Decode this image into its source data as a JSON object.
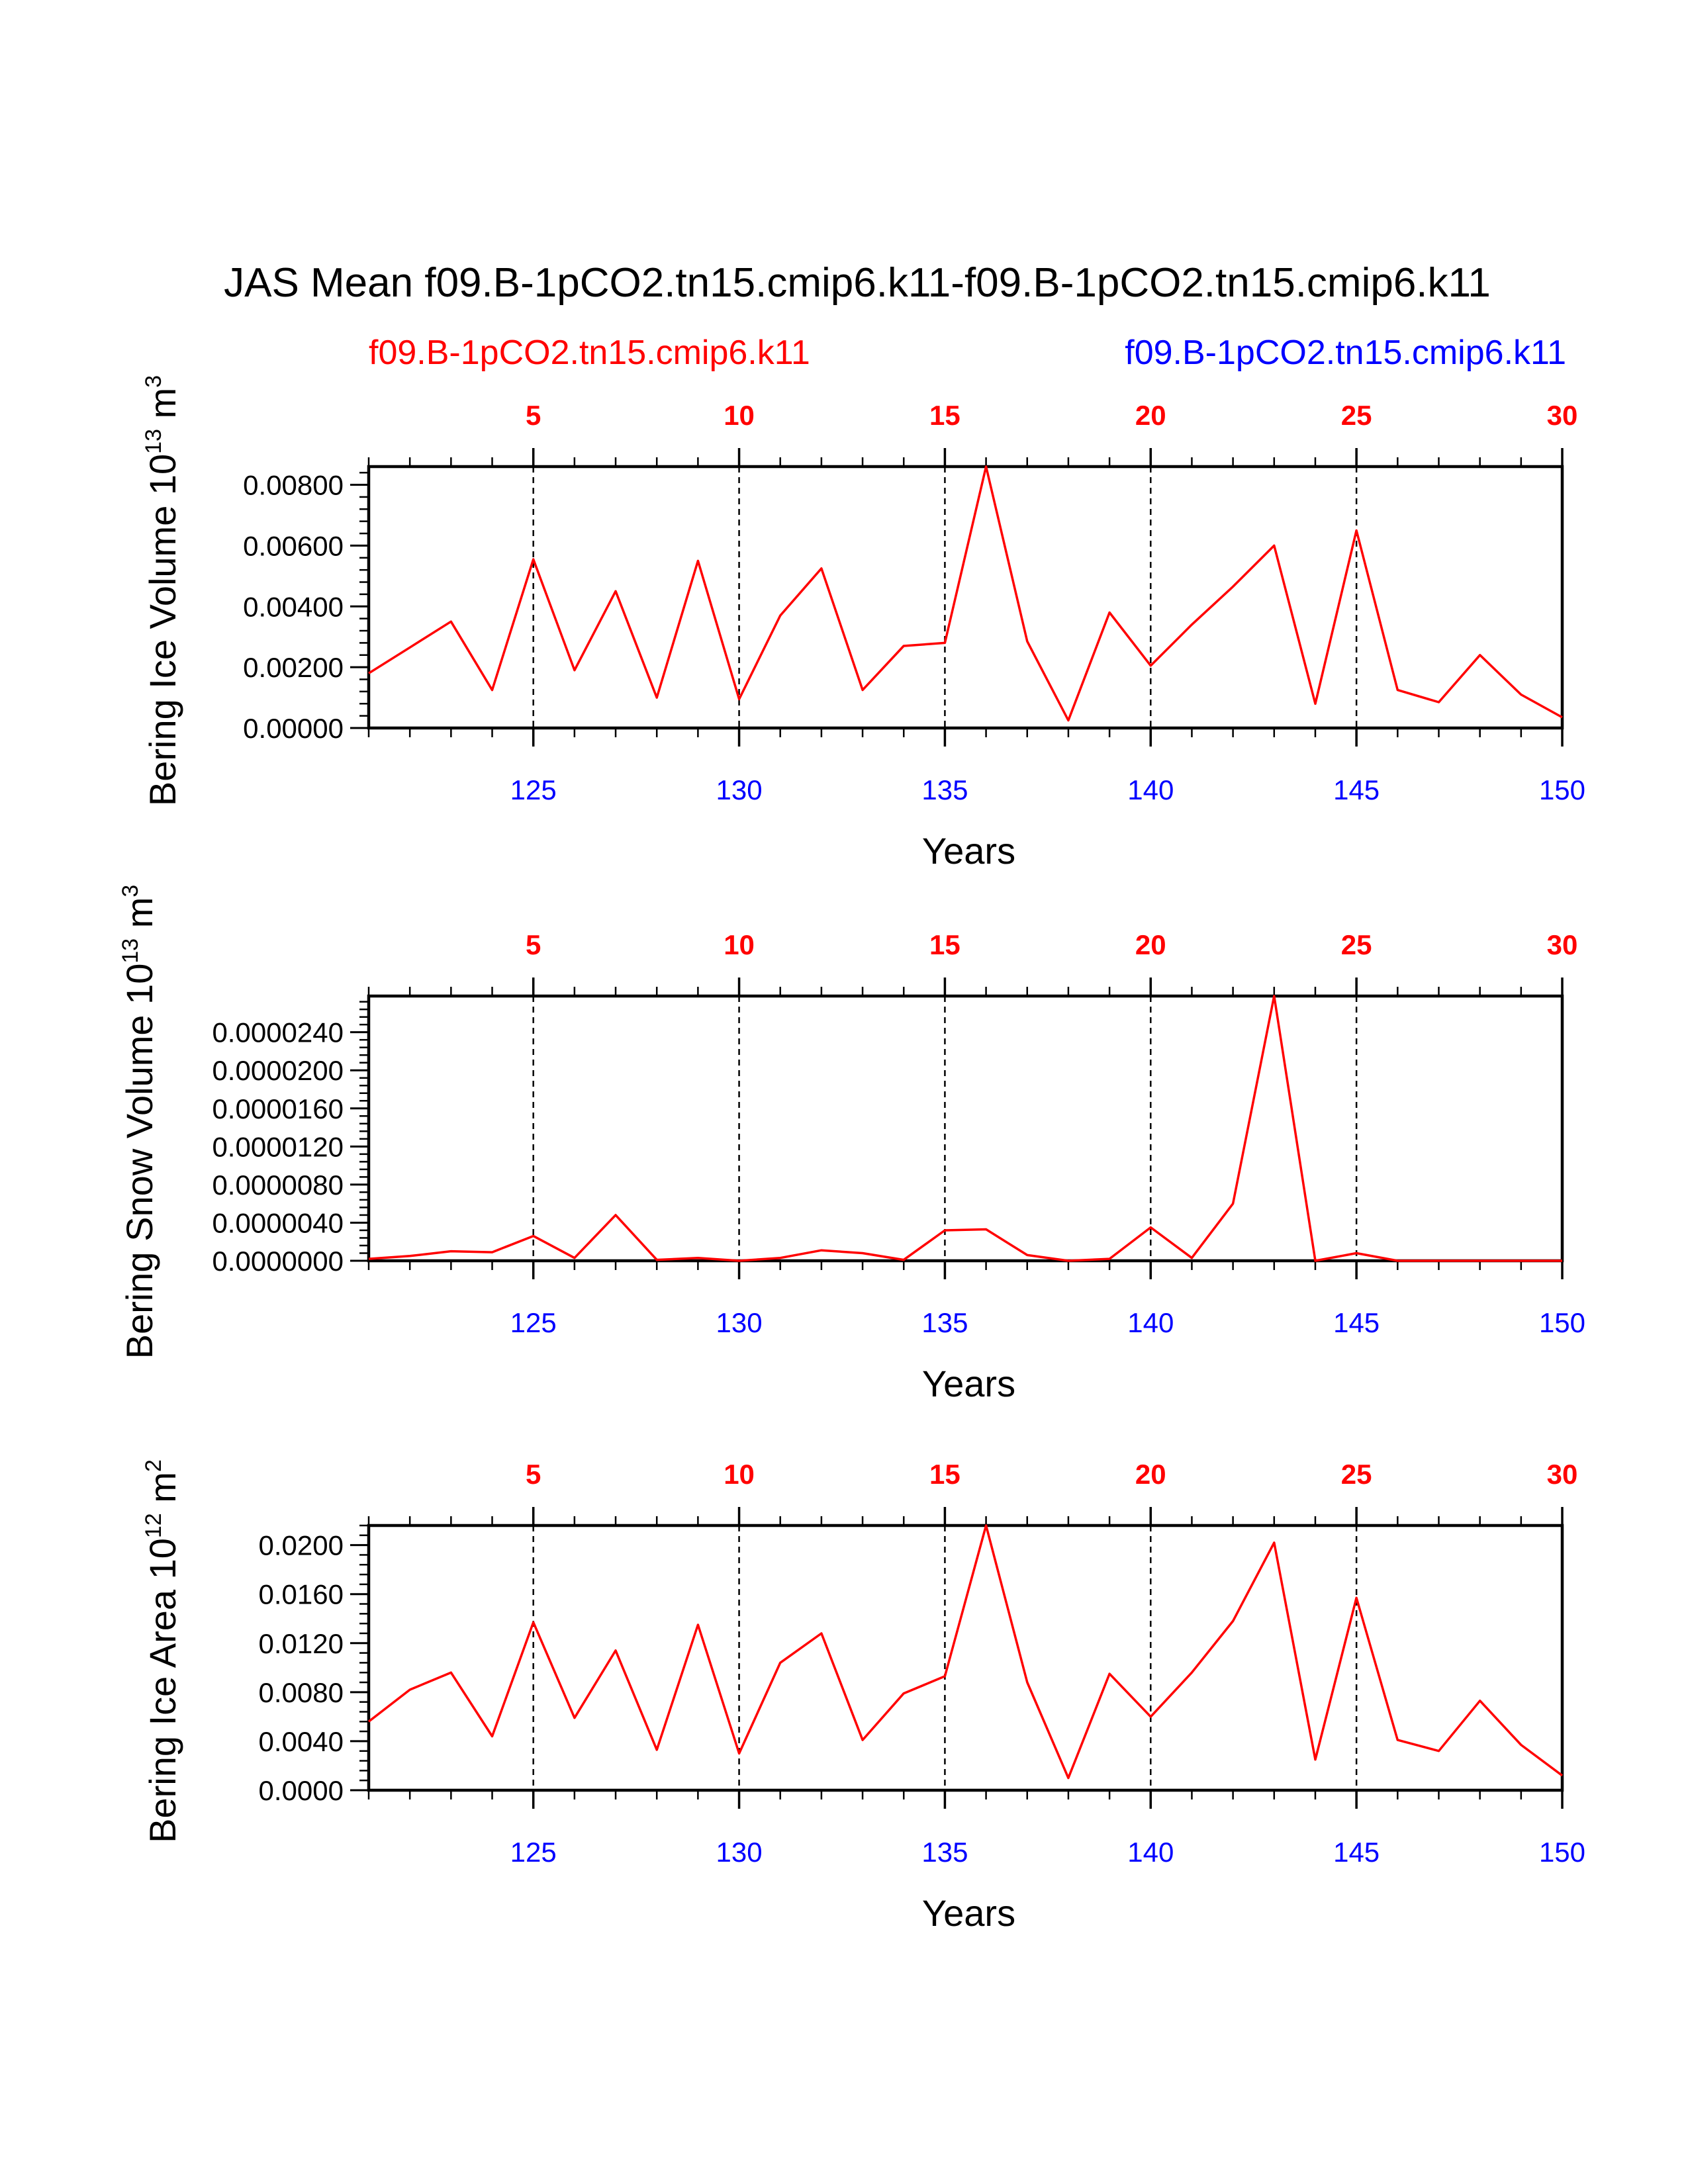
{
  "title": "JAS Mean f09.B-1pCO2.tn15.cmip6.k11-f09.B-1pCO2.tn15.cmip6.k11",
  "subtitle_left": "f09.B-1pCO2.tn15.cmip6.k11",
  "subtitle_right": "f09.B-1pCO2.tn15.cmip6.k11",
  "colors": {
    "line": "#ff0000",
    "bottom_ticks": "#0000ff",
    "top_ticks": "#ff0000",
    "axes": "#000000"
  },
  "chart_data": [
    {
      "type": "line",
      "ylabel": "Bering Ice Volume 10",
      "ylabel_exp": "13",
      "ylabel_unit": " m",
      "ylabel_unit_exp": "3",
      "xlabel": "Years",
      "xlim": [
        121,
        150
      ],
      "ylim": [
        0,
        0.0086
      ],
      "yticks": [
        0.0,
        0.002,
        0.004,
        0.006,
        0.008
      ],
      "ytick_labels": [
        "0.00000",
        "0.00200",
        "0.00400",
        "0.00600",
        "0.00800"
      ],
      "yminor_step": 0.0004,
      "xticks_bottom": [
        125,
        130,
        135,
        140,
        145,
        150
      ],
      "xtick_labels_bottom": [
        "125",
        "130",
        "135",
        "140",
        "145",
        "150"
      ],
      "xticks_top_labels": [
        "5",
        "10",
        "15",
        "20",
        "25",
        "30"
      ],
      "dashed_lines_at": [
        125,
        130,
        135,
        140,
        145
      ],
      "x": [
        121,
        122,
        123,
        124,
        125,
        126,
        127,
        128,
        129,
        130,
        131,
        132,
        133,
        134,
        135,
        136,
        137,
        138,
        139,
        140,
        141,
        142,
        143,
        144,
        145,
        146,
        147,
        148,
        149,
        150
      ],
      "values": [
        0.0018,
        0.00265,
        0.0035,
        0.00125,
        0.00555,
        0.0019,
        0.0045,
        0.001,
        0.0055,
        0.00095,
        0.0037,
        0.00525,
        0.00125,
        0.0027,
        0.0028,
        0.0086,
        0.00285,
        0.00025,
        0.0038,
        0.00205,
        0.0034,
        0.00465,
        0.006,
        0.0008,
        0.0065,
        0.00125,
        0.00085,
        0.0024,
        0.0011,
        0.00035
      ]
    },
    {
      "type": "line",
      "ylabel": "Bering Snow Volume 10",
      "ylabel_exp": "13",
      "ylabel_unit": " m",
      "ylabel_unit_exp": "3",
      "xlabel": "Years",
      "xlim": [
        121,
        150
      ],
      "ylim": [
        0,
        2.78e-05
      ],
      "yticks": [
        0.0,
        4e-06,
        8e-06,
        1.2e-05,
        1.6e-05,
        2e-05,
        2.4e-05
      ],
      "ytick_labels": [
        "0.0000000",
        "0.0000040",
        "0.0000080",
        "0.0000120",
        "0.0000160",
        "0.0000200",
        "0.0000240"
      ],
      "yminor_step": 8e-07,
      "xticks_bottom": [
        125,
        130,
        135,
        140,
        145,
        150
      ],
      "xtick_labels_bottom": [
        "125",
        "130",
        "135",
        "140",
        "145",
        "150"
      ],
      "xticks_top_labels": [
        "5",
        "10",
        "15",
        "20",
        "25",
        "30"
      ],
      "dashed_lines_at": [
        125,
        130,
        135,
        140,
        145
      ],
      "x": [
        121,
        122,
        123,
        124,
        125,
        126,
        127,
        128,
        129,
        130,
        131,
        132,
        133,
        134,
        135,
        136,
        137,
        138,
        139,
        140,
        141,
        142,
        143,
        144,
        145,
        146,
        147,
        148,
        149,
        150
      ],
      "values": [
        2e-07,
        5e-07,
        1e-06,
        9e-07,
        2.6e-06,
        3e-07,
        4.8e-06,
        1e-07,
        3e-07,
        0.0,
        3e-07,
        1.1e-06,
        8e-07,
        1e-07,
        3.2e-06,
        3.3e-06,
        6e-07,
        0.0,
        2e-07,
        3.5e-06,
        3e-07,
        6e-06,
        2.78e-05,
        0.0,
        8e-07,
        0.0,
        0.0,
        0.0,
        0.0,
        0.0
      ]
    },
    {
      "type": "line",
      "ylabel": "Bering Ice Area 10",
      "ylabel_exp": "12",
      "ylabel_unit": " m",
      "ylabel_unit_exp": "2",
      "xlabel": "Years",
      "xlim": [
        121,
        150
      ],
      "ylim": [
        0,
        0.0216
      ],
      "yticks": [
        0.0,
        0.004,
        0.008,
        0.012,
        0.016,
        0.02
      ],
      "ytick_labels": [
        "0.0000",
        "0.0040",
        "0.0080",
        "0.0120",
        "0.0160",
        "0.0200"
      ],
      "yminor_step": 0.0008,
      "xticks_bottom": [
        125,
        130,
        135,
        140,
        145,
        150
      ],
      "xtick_labels_bottom": [
        "125",
        "130",
        "135",
        "140",
        "145",
        "150"
      ],
      "xticks_top_labels": [
        "5",
        "10",
        "15",
        "20",
        "25",
        "30"
      ],
      "dashed_lines_at": [
        125,
        130,
        135,
        140,
        145
      ],
      "x": [
        121,
        122,
        123,
        124,
        125,
        126,
        127,
        128,
        129,
        130,
        131,
        132,
        133,
        134,
        135,
        136,
        137,
        138,
        139,
        140,
        141,
        142,
        143,
        144,
        145,
        146,
        147,
        148,
        149,
        150
      ],
      "values": [
        0.0056,
        0.0082,
        0.0096,
        0.0044,
        0.0137,
        0.0059,
        0.0114,
        0.0033,
        0.0135,
        0.003,
        0.0104,
        0.0128,
        0.0041,
        0.0079,
        0.0093,
        0.0216,
        0.0088,
        0.001,
        0.0095,
        0.006,
        0.0096,
        0.0138,
        0.0202,
        0.0025,
        0.0157,
        0.0041,
        0.0032,
        0.0073,
        0.0037,
        0.0012
      ]
    }
  ]
}
